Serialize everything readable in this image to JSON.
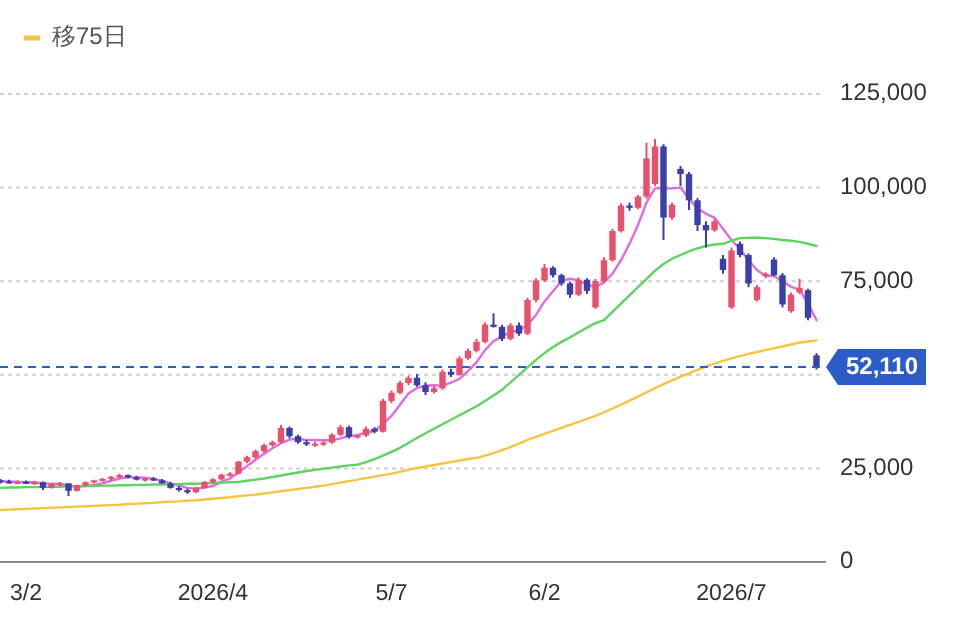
{
  "chart_data": {
    "type": "candlestick",
    "categories": [
      null,
      null,
      null,
      "3/2",
      null,
      null,
      null,
      null,
      null,
      null,
      null,
      null,
      null,
      null,
      null,
      null,
      null,
      null,
      null,
      null,
      null,
      null,
      null,
      null,
      null,
      "2026/4",
      null,
      null,
      null,
      null,
      null,
      null,
      null,
      null,
      null,
      null,
      null,
      null,
      null,
      null,
      null,
      null,
      null,
      null,
      null,
      null,
      "5/7",
      null,
      null,
      null,
      null,
      null,
      null,
      null,
      null,
      null,
      null,
      null,
      null,
      null,
      null,
      null,
      null,
      null,
      "6/2",
      null,
      null,
      null,
      null,
      null,
      null,
      null,
      null,
      null,
      null,
      null,
      null,
      null,
      null,
      null,
      null,
      null,
      null,
      null,
      null,
      null,
      "2026/7",
      null,
      null,
      null,
      null,
      null,
      null,
      null,
      null,
      null,
      null
    ],
    "ohlc": [
      [
        21800,
        22200,
        21000,
        21500
      ],
      [
        21500,
        22000,
        21000,
        21200
      ],
      [
        21200,
        21800,
        20800,
        21400
      ],
      [
        21400,
        21800,
        20900,
        21000
      ],
      [
        21000,
        21700,
        20600,
        21300
      ],
      [
        21300,
        21500,
        19200,
        19800
      ],
      [
        19800,
        21000,
        19600,
        20800
      ],
      [
        20800,
        21400,
        20200,
        21000
      ],
      [
        21000,
        21000,
        17600,
        19000
      ],
      [
        19000,
        20600,
        18800,
        20500
      ],
      [
        20500,
        21500,
        20200,
        21300
      ],
      [
        21300,
        22000,
        21000,
        21800
      ],
      [
        21800,
        22500,
        21400,
        22200
      ],
      [
        22200,
        23000,
        21800,
        22800
      ],
      [
        22800,
        23600,
        22300,
        23200
      ],
      [
        23200,
        23400,
        22400,
        22600
      ],
      [
        22600,
        23000,
        21800,
        22000
      ],
      [
        22000,
        22600,
        21500,
        22300
      ],
      [
        22300,
        22700,
        21600,
        21800
      ],
      [
        21800,
        22200,
        20800,
        21000
      ],
      [
        21000,
        21400,
        19600,
        19800
      ],
      [
        19800,
        20200,
        18800,
        19200
      ],
      [
        19200,
        19600,
        18200,
        18600
      ],
      [
        18600,
        20000,
        18400,
        19800
      ],
      [
        19800,
        21600,
        19600,
        21400
      ],
      [
        21400,
        22400,
        21000,
        22100
      ],
      [
        22100,
        23600,
        21800,
        23300
      ],
      [
        23300,
        24000,
        22800,
        23600
      ],
      [
        23600,
        27000,
        23400,
        26800
      ],
      [
        26800,
        28400,
        26400,
        28000
      ],
      [
        28000,
        30000,
        27600,
        29600
      ],
      [
        29600,
        31600,
        29200,
        31200
      ],
      [
        31200,
        32400,
        30800,
        32000
      ],
      [
        32000,
        36600,
        31800,
        35800
      ],
      [
        35800,
        36200,
        33000,
        33600
      ],
      [
        33600,
        34000,
        31600,
        32000
      ],
      [
        32000,
        32600,
        31000,
        31400
      ],
      [
        31400,
        32200,
        30800,
        31600
      ],
      [
        31600,
        32400,
        31000,
        31900
      ],
      [
        31900,
        34400,
        31600,
        34000
      ],
      [
        34000,
        36600,
        33600,
        36000
      ],
      [
        36000,
        36400,
        33000,
        33400
      ],
      [
        33400,
        34000,
        33000,
        33800
      ],
      [
        33800,
        36200,
        33400,
        35600
      ],
      [
        35600,
        36000,
        34400,
        34800
      ],
      [
        34800,
        43600,
        34600,
        43000
      ],
      [
        43000,
        45800,
        42400,
        45200
      ],
      [
        45200,
        48400,
        44800,
        47800
      ],
      [
        47800,
        49800,
        47200,
        49200
      ],
      [
        49200,
        50200,
        46800,
        47200
      ],
      [
        47200,
        48000,
        44600,
        45400
      ],
      [
        45400,
        47000,
        45000,
        46400
      ],
      [
        46400,
        51400,
        46000,
        50800
      ],
      [
        50800,
        51600,
        49400,
        50000
      ],
      [
        50000,
        55000,
        49800,
        54400
      ],
      [
        54400,
        57000,
        54000,
        56400
      ],
      [
        56400,
        59600,
        56000,
        58800
      ],
      [
        58800,
        64000,
        58400,
        63400
      ],
      [
        63400,
        66400,
        62600,
        62800
      ],
      [
        62800,
        63400,
        59000,
        59600
      ],
      [
        59600,
        63800,
        59200,
        63200
      ],
      [
        63200,
        64000,
        60400,
        61000
      ],
      [
        61000,
        70600,
        60600,
        70000
      ],
      [
        70000,
        75800,
        69400,
        75200
      ],
      [
        75200,
        79600,
        74800,
        78600
      ],
      [
        78600,
        79000,
        76000,
        76600
      ],
      [
        76600,
        77000,
        73800,
        74400
      ],
      [
        74400,
        74800,
        70600,
        71400
      ],
      [
        71400,
        76000,
        71000,
        75400
      ],
      [
        75400,
        75800,
        71600,
        72400
      ],
      [
        68000,
        75600,
        67600,
        75000
      ],
      [
        75000,
        81400,
        74600,
        80600
      ],
      [
        80600,
        89000,
        80200,
        88400
      ],
      [
        88400,
        95800,
        88000,
        95200
      ],
      [
        95200,
        96000,
        93800,
        94600
      ],
      [
        94600,
        98000,
        94200,
        97600
      ],
      [
        97600,
        112000,
        97000,
        107800
      ],
      [
        101000,
        113000,
        100400,
        111000
      ],
      [
        111000,
        111600,
        86000,
        92000
      ],
      [
        92000,
        96000,
        91400,
        95400
      ],
      [
        105000,
        105800,
        100400,
        103600
      ],
      [
        103600,
        104200,
        94000,
        96600
      ],
      [
        96600,
        97200,
        88400,
        90000
      ],
      [
        90000,
        91000,
        84000,
        88600
      ],
      [
        88600,
        91600,
        88200,
        91000
      ],
      [
        81000,
        82000,
        77000,
        78000
      ],
      [
        68000,
        84000,
        67600,
        83200
      ],
      [
        85000,
        85600,
        81400,
        82000
      ],
      [
        82000,
        82400,
        73400,
        74400
      ],
      [
        70000,
        74000,
        69600,
        73400
      ],
      [
        76400,
        77400,
        75800,
        77000
      ],
      [
        80800,
        81400,
        76400,
        76600
      ],
      [
        76600,
        77200,
        68000,
        68800
      ],
      [
        67000,
        72000,
        66600,
        71400
      ],
      [
        72000,
        75600,
        71600,
        73200
      ],
      [
        72600,
        73000,
        64600,
        65200
      ],
      [
        55200,
        55800,
        51400,
        52110
      ]
    ],
    "colors": [
      "#3b3fa8",
      "#3b3fa8",
      "#e8506b",
      "#3b3fa8",
      "#e8506b",
      "#3b3fa8",
      "#e8506b",
      "#e8506b",
      "#3b3fa8",
      "#e8506b",
      "#e8506b",
      "#e8506b",
      "#e8506b",
      "#e8506b",
      "#e8506b",
      "#3b3fa8",
      "#3b3fa8",
      "#e8506b",
      "#3b3fa8",
      "#3b3fa8",
      "#3b3fa8",
      "#3b3fa8",
      "#3b3fa8",
      "#e8506b",
      "#e8506b",
      "#e8506b",
      "#e8506b",
      "#e8506b",
      "#e8506b",
      "#e8506b",
      "#e8506b",
      "#e8506b",
      "#e8506b",
      "#e8506b",
      "#3b3fa8",
      "#3b3fa8",
      "#3b3fa8",
      "#e8506b",
      "#e8506b",
      "#e8506b",
      "#e8506b",
      "#3b3fa8",
      "#e8506b",
      "#e8506b",
      "#3b3fa8",
      "#e8506b",
      "#e8506b",
      "#e8506b",
      "#e8506b",
      "#3b3fa8",
      "#3b3fa8",
      "#e8506b",
      "#e8506b",
      "#3b3fa8",
      "#e8506b",
      "#e8506b",
      "#e8506b",
      "#e8506b",
      "#3b3fa8",
      "#3b3fa8",
      "#e8506b",
      "#3b3fa8",
      "#e8506b",
      "#e8506b",
      "#e8506b",
      "#3b3fa8",
      "#3b3fa8",
      "#3b3fa8",
      "#e8506b",
      "#3b3fa8",
      "#e8506b",
      "#e8506b",
      "#e8506b",
      "#e8506b",
      "#3b3fa8",
      "#e8506b",
      "#e8506b",
      "#e8506b",
      "#3b3fa8",
      "#e8506b",
      "#3b3fa8",
      "#3b3fa8",
      "#3b3fa8",
      "#3b3fa8",
      "#e8506b",
      "#3b3fa8",
      "#e8506b",
      "#3b3fa8",
      "#3b3fa8",
      "#e8506b",
      "#e8506b",
      "#3b3fa8",
      "#3b3fa8",
      "#e8506b",
      "#e8506b",
      "#3b3fa8",
      "#3b3fa8"
    ],
    "series": [
      {
        "type": "line",
        "color": "#e06ae6",
        "values": [
          21600,
          21500,
          21400,
          21300,
          21300,
          21000,
          20900,
          20900,
          20400,
          20200,
          20300,
          20600,
          21000,
          21700,
          22300,
          22600,
          22600,
          22500,
          22200,
          21700,
          21000,
          20400,
          19800,
          19600,
          19900,
          20300,
          21400,
          22300,
          23900,
          25600,
          27300,
          28900,
          30400,
          31700,
          32700,
          32900,
          32600,
          32600,
          32500,
          32500,
          33000,
          33600,
          33900,
          34600,
          35000,
          36800,
          39000,
          42000,
          45000,
          46500,
          47100,
          47200,
          47100,
          47900,
          48900,
          51000,
          53300,
          56600,
          59000,
          60200,
          61500,
          61800,
          63300,
          66000,
          69600,
          72300,
          75000,
          75700,
          75200,
          74100,
          73500,
          74700,
          77000,
          80600,
          85000,
          90000,
          96000,
          99800,
          99800,
          99800,
          100000,
          97000,
          94500,
          93000,
          92000,
          89000,
          86000,
          83600,
          80600,
          78000,
          76400,
          76400,
          75000,
          73500,
          72800,
          69000,
          64600
        ]
      },
      {
        "type": "line",
        "color": "#5fd35f",
        "values": [
          19800,
          19900,
          19900,
          20000,
          20000,
          20000,
          20100,
          20100,
          20200,
          20200,
          20300,
          20300,
          20400,
          20400,
          20500,
          20500,
          20600,
          20600,
          20700,
          20700,
          20800,
          20800,
          20900,
          20900,
          21000,
          21100,
          21200,
          21300,
          21400,
          21700,
          22000,
          22300,
          22700,
          23100,
          23500,
          23900,
          24300,
          24600,
          24900,
          25200,
          25500,
          25800,
          26000,
          26700,
          27500,
          28400,
          29400,
          30500,
          31800,
          33100,
          34400,
          35600,
          36800,
          38000,
          39200,
          40400,
          41600,
          43000,
          44500,
          46000,
          48000,
          50000,
          52000,
          54000,
          55800,
          57400,
          58800,
          60000,
          61300,
          62600,
          63800,
          64600,
          66800,
          69000,
          71200,
          73400,
          75600,
          77800,
          79600,
          81000,
          82000,
          83000,
          83800,
          84400,
          84800,
          85000,
          85800,
          86500,
          86600,
          86600,
          86500,
          86300,
          86000,
          85800,
          85500,
          85000,
          84400
        ]
      },
      {
        "type": "line",
        "name": "移75日",
        "color": "#f5c542",
        "values": [
          13900,
          14000,
          14100,
          14200,
          14300,
          14400,
          14500,
          14600,
          14700,
          14800,
          14900,
          15000,
          15100,
          15200,
          15300,
          15500,
          15600,
          15700,
          15800,
          16000,
          16100,
          16200,
          16400,
          16500,
          16700,
          16900,
          17100,
          17300,
          17600,
          17800,
          18000,
          18300,
          18600,
          18900,
          19200,
          19500,
          19800,
          20100,
          20400,
          20800,
          21200,
          21600,
          22000,
          22400,
          22800,
          23200,
          23600,
          24100,
          24600,
          25100,
          25500,
          25900,
          26300,
          26700,
          27100,
          27500,
          27800,
          28400,
          29100,
          29900,
          30700,
          31600,
          32600,
          33400,
          34200,
          35000,
          35800,
          36600,
          37400,
          38200,
          39000,
          40000,
          41000,
          42000,
          43100,
          44200,
          45300,
          46400,
          47500,
          48500,
          49500,
          50400,
          51300,
          52200,
          53000,
          53700,
          54400,
          55000,
          55600,
          56100,
          56600,
          57100,
          57600,
          58100,
          58600,
          58900,
          59200
        ]
      }
    ],
    "ylim": [
      0,
      125000
    ],
    "yticks": [
      0,
      {
        "value": 25000,
        "label": "25,000"
      },
      {
        "value": 50000,
        "label": null
      },
      {
        "value": 75000,
        "label": "75,000"
      },
      {
        "value": 100000,
        "label": "100,000"
      },
      {
        "value": 125000,
        "label": "125,000"
      }
    ],
    "grid": "y",
    "legend": "top left",
    "marker": "none",
    "ref_lines": [
      {
        "axis": "y",
        "value": 52110,
        "label": "52,110",
        "color": "#2b5cc8",
        "line_style": "dashed"
      }
    ]
  }
}
